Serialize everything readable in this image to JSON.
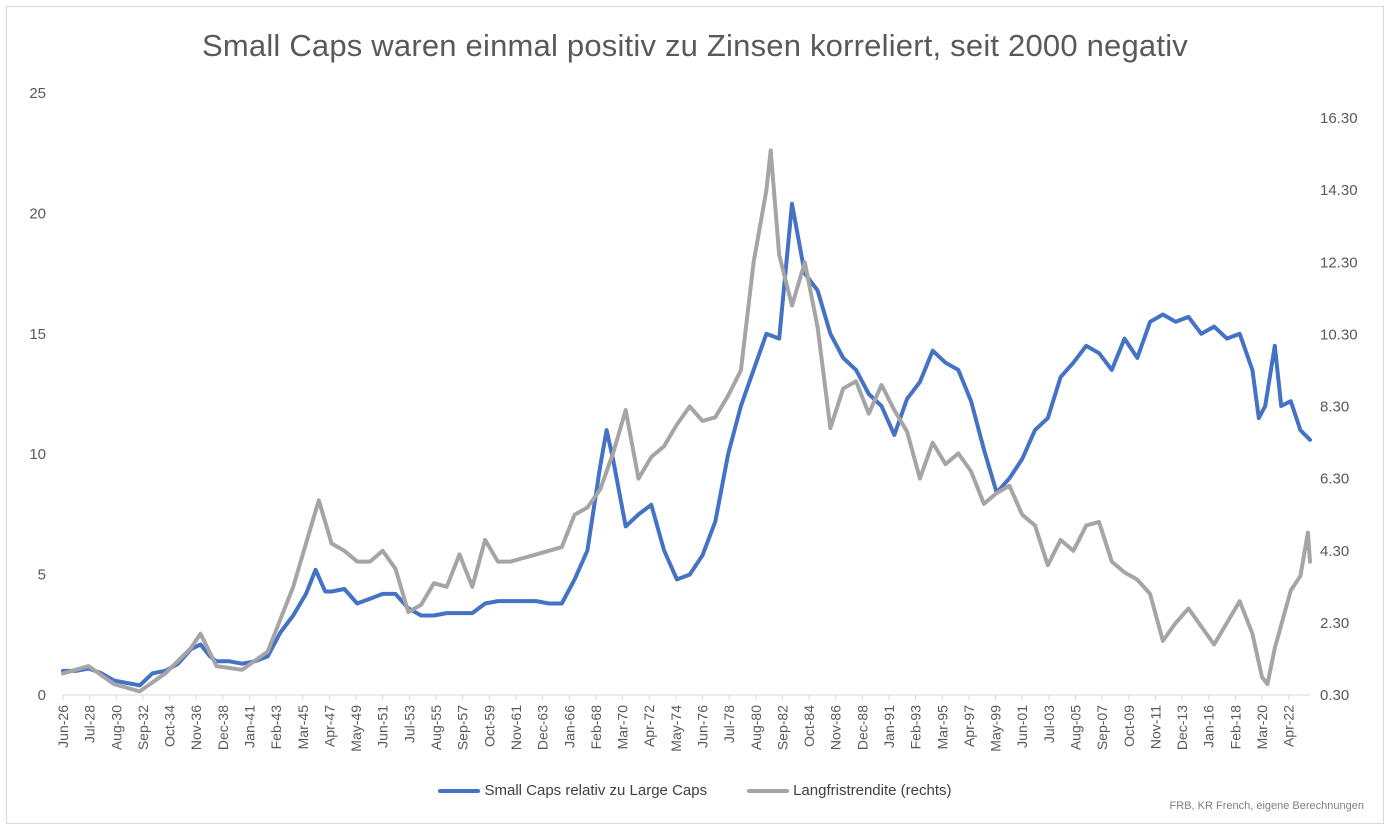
{
  "chart_data": {
    "type": "line",
    "title": "Small Caps waren einmal positiv zu Zinsen korreliert, seit 2000 negativ",
    "source_note": "FRB, KR French, eigene Berechnungen",
    "x_range": [
      "1926-06",
      "2023-12"
    ],
    "x_tick_labels": [
      "Jun-26",
      "Jul-28",
      "Aug-30",
      "Sep-32",
      "Oct-34",
      "Nov-36",
      "Dec-38",
      "Jan-41",
      "Feb-43",
      "Mar-45",
      "Apr-47",
      "May-49",
      "Jun-51",
      "Jul-53",
      "Aug-55",
      "Sep-57",
      "Oct-59",
      "Nov-61",
      "Dec-63",
      "Jan-66",
      "Feb-68",
      "Mar-70",
      "Apr-72",
      "May-74",
      "Jun-76",
      "Jul-78",
      "Aug-80",
      "Sep-82",
      "Oct-84",
      "Nov-86",
      "Dec-88",
      "Jan-91",
      "Feb-93",
      "Mar-95",
      "Apr-97",
      "May-99",
      "Jun-01",
      "Jul-03",
      "Aug-05",
      "Sep-07",
      "Oct-09",
      "Nov-11",
      "Dec-13",
      "Jan-16",
      "Feb-18",
      "Mar-20",
      "Apr-22"
    ],
    "y_left": {
      "ticks": [
        "0",
        "5",
        "10",
        "15",
        "20",
        "25"
      ],
      "range": [
        0,
        25
      ]
    },
    "y_right": {
      "ticks": [
        "0.30",
        "2.30",
        "4.30",
        "6.30",
        "8.30",
        "10.30",
        "12.30",
        "14.30",
        "16.30"
      ],
      "range": [
        0.3,
        16.3
      ]
    },
    "legend_position": "bottom",
    "grid": false,
    "series": [
      {
        "name": "Small Caps relativ zu Large Caps",
        "axis": "left",
        "color": "#4472c4",
        "points": [
          [
            "1926-06",
            1.0
          ],
          [
            "1927-06",
            1.0
          ],
          [
            "1928-06",
            1.1
          ],
          [
            "1929-06",
            0.9
          ],
          [
            "1930-06",
            0.6
          ],
          [
            "1931-06",
            0.5
          ],
          [
            "1932-06",
            0.4
          ],
          [
            "1933-06",
            0.9
          ],
          [
            "1934-06",
            1.0
          ],
          [
            "1935-06",
            1.3
          ],
          [
            "1936-06",
            1.9
          ],
          [
            "1937-03",
            2.1
          ],
          [
            "1937-12",
            1.6
          ],
          [
            "1938-06",
            1.4
          ],
          [
            "1939-06",
            1.4
          ],
          [
            "1940-06",
            1.3
          ],
          [
            "1941-06",
            1.4
          ],
          [
            "1942-06",
            1.6
          ],
          [
            "1943-06",
            2.6
          ],
          [
            "1944-06",
            3.3
          ],
          [
            "1945-06",
            4.2
          ],
          [
            "1946-03",
            5.2
          ],
          [
            "1946-12",
            4.3
          ],
          [
            "1947-06",
            4.3
          ],
          [
            "1948-06",
            4.4
          ],
          [
            "1949-06",
            3.8
          ],
          [
            "1950-06",
            4.0
          ],
          [
            "1951-06",
            4.2
          ],
          [
            "1952-06",
            4.2
          ],
          [
            "1953-06",
            3.6
          ],
          [
            "1954-06",
            3.3
          ],
          [
            "1955-06",
            3.3
          ],
          [
            "1956-06",
            3.4
          ],
          [
            "1957-06",
            3.4
          ],
          [
            "1958-06",
            3.4
          ],
          [
            "1959-06",
            3.8
          ],
          [
            "1960-06",
            3.9
          ],
          [
            "1961-06",
            3.9
          ],
          [
            "1962-06",
            3.9
          ],
          [
            "1963-06",
            3.9
          ],
          [
            "1964-06",
            3.8
          ],
          [
            "1965-06",
            3.8
          ],
          [
            "1966-06",
            4.8
          ],
          [
            "1967-06",
            6.0
          ],
          [
            "1968-06",
            9.5
          ],
          [
            "1968-12",
            11.0
          ],
          [
            "1969-06",
            9.8
          ],
          [
            "1970-06",
            7.0
          ],
          [
            "1971-06",
            7.5
          ],
          [
            "1972-06",
            7.9
          ],
          [
            "1973-06",
            6.0
          ],
          [
            "1974-06",
            4.8
          ],
          [
            "1975-06",
            5.0
          ],
          [
            "1976-06",
            5.8
          ],
          [
            "1977-06",
            7.2
          ],
          [
            "1978-06",
            10.0
          ],
          [
            "1979-06",
            12.0
          ],
          [
            "1980-06",
            13.5
          ],
          [
            "1981-06",
            15.0
          ],
          [
            "1982-06",
            14.8
          ],
          [
            "1983-06",
            20.4
          ],
          [
            "1984-06",
            17.5
          ],
          [
            "1985-06",
            16.8
          ],
          [
            "1986-06",
            15.0
          ],
          [
            "1987-06",
            14.0
          ],
          [
            "1988-06",
            13.5
          ],
          [
            "1989-06",
            12.5
          ],
          [
            "1990-06",
            12.0
          ],
          [
            "1991-06",
            10.8
          ],
          [
            "1992-06",
            12.3
          ],
          [
            "1993-06",
            13.0
          ],
          [
            "1994-06",
            14.3
          ],
          [
            "1995-06",
            13.8
          ],
          [
            "1996-06",
            13.5
          ],
          [
            "1997-06",
            12.2
          ],
          [
            "1998-06",
            10.2
          ],
          [
            "1999-06",
            8.4
          ],
          [
            "2000-06",
            9.0
          ],
          [
            "2001-06",
            9.8
          ],
          [
            "2002-06",
            11.0
          ],
          [
            "2003-06",
            11.5
          ],
          [
            "2004-06",
            13.2
          ],
          [
            "2005-06",
            13.8
          ],
          [
            "2006-06",
            14.5
          ],
          [
            "2007-06",
            14.2
          ],
          [
            "2008-06",
            13.5
          ],
          [
            "2009-06",
            14.8
          ],
          [
            "2010-06",
            14.0
          ],
          [
            "2011-06",
            15.5
          ],
          [
            "2012-06",
            15.8
          ],
          [
            "2013-06",
            15.5
          ],
          [
            "2014-06",
            15.7
          ],
          [
            "2015-06",
            15.0
          ],
          [
            "2016-06",
            15.3
          ],
          [
            "2017-06",
            14.8
          ],
          [
            "2018-06",
            15.0
          ],
          [
            "2019-06",
            13.5
          ],
          [
            "2019-12",
            11.5
          ],
          [
            "2020-06",
            12.0
          ],
          [
            "2021-03",
            14.5
          ],
          [
            "2021-09",
            12.0
          ],
          [
            "2022-06",
            12.2
          ],
          [
            "2023-03",
            11.0
          ],
          [
            "2023-12",
            10.6
          ]
        ]
      },
      {
        "name": "Langfristrendite (rechts)",
        "axis": "right",
        "color": "#a5a5a5",
        "points": [
          [
            "1926-06",
            0.9
          ],
          [
            "1928-06",
            1.1
          ],
          [
            "1930-06",
            0.6
          ],
          [
            "1932-06",
            0.4
          ],
          [
            "1934-06",
            0.9
          ],
          [
            "1936-06",
            1.6
          ],
          [
            "1937-03",
            2.0
          ],
          [
            "1938-06",
            1.1
          ],
          [
            "1940-06",
            1.0
          ],
          [
            "1942-06",
            1.5
          ],
          [
            "1944-06",
            3.3
          ],
          [
            "1945-06",
            4.5
          ],
          [
            "1946-06",
            5.7
          ],
          [
            "1947-06",
            4.5
          ],
          [
            "1948-06",
            4.3
          ],
          [
            "1949-06",
            4.0
          ],
          [
            "1950-06",
            4.0
          ],
          [
            "1951-06",
            4.3
          ],
          [
            "1952-06",
            3.8
          ],
          [
            "1953-06",
            2.6
          ],
          [
            "1954-06",
            2.8
          ],
          [
            "1955-06",
            3.4
          ],
          [
            "1956-06",
            3.3
          ],
          [
            "1957-06",
            4.2
          ],
          [
            "1958-06",
            3.3
          ],
          [
            "1959-06",
            4.6
          ],
          [
            "1960-06",
            4.0
          ],
          [
            "1961-06",
            4.0
          ],
          [
            "1962-06",
            4.1
          ],
          [
            "1963-06",
            4.2
          ],
          [
            "1964-06",
            4.3
          ],
          [
            "1965-06",
            4.4
          ],
          [
            "1966-06",
            5.3
          ],
          [
            "1967-06",
            5.5
          ],
          [
            "1968-06",
            6.0
          ],
          [
            "1969-06",
            7.0
          ],
          [
            "1970-06",
            8.2
          ],
          [
            "1971-06",
            6.3
          ],
          [
            "1972-06",
            6.9
          ],
          [
            "1973-06",
            7.2
          ],
          [
            "1974-06",
            7.8
          ],
          [
            "1975-06",
            8.3
          ],
          [
            "1976-06",
            7.9
          ],
          [
            "1977-06",
            8.0
          ],
          [
            "1978-06",
            8.6
          ],
          [
            "1979-06",
            9.3
          ],
          [
            "1980-06",
            12.3
          ],
          [
            "1981-06",
            14.3
          ],
          [
            "1981-10",
            15.4
          ],
          [
            "1982-06",
            12.5
          ],
          [
            "1983-06",
            11.1
          ],
          [
            "1984-06",
            12.3
          ],
          [
            "1985-06",
            10.5
          ],
          [
            "1986-06",
            7.7
          ],
          [
            "1987-06",
            8.8
          ],
          [
            "1988-06",
            9.0
          ],
          [
            "1989-06",
            8.1
          ],
          [
            "1990-06",
            8.9
          ],
          [
            "1991-06",
            8.2
          ],
          [
            "1992-06",
            7.6
          ],
          [
            "1993-06",
            6.3
          ],
          [
            "1994-06",
            7.3
          ],
          [
            "1995-06",
            6.7
          ],
          [
            "1996-06",
            7.0
          ],
          [
            "1997-06",
            6.5
          ],
          [
            "1998-06",
            5.6
          ],
          [
            "1999-06",
            5.9
          ],
          [
            "2000-06",
            6.1
          ],
          [
            "2001-06",
            5.3
          ],
          [
            "2002-06",
            5.0
          ],
          [
            "2003-06",
            3.9
          ],
          [
            "2004-06",
            4.6
          ],
          [
            "2005-06",
            4.3
          ],
          [
            "2006-06",
            5.0
          ],
          [
            "2007-06",
            5.1
          ],
          [
            "2008-06",
            4.0
          ],
          [
            "2009-06",
            3.7
          ],
          [
            "2010-06",
            3.5
          ],
          [
            "2011-06",
            3.1
          ],
          [
            "2012-06",
            1.8
          ],
          [
            "2013-06",
            2.3
          ],
          [
            "2014-06",
            2.7
          ],
          [
            "2015-06",
            2.2
          ],
          [
            "2016-06",
            1.7
          ],
          [
            "2017-06",
            2.3
          ],
          [
            "2018-06",
            2.9
          ],
          [
            "2019-06",
            2.0
          ],
          [
            "2020-03",
            0.8
          ],
          [
            "2020-08",
            0.6
          ],
          [
            "2021-03",
            1.6
          ],
          [
            "2022-06",
            3.2
          ],
          [
            "2023-03",
            3.6
          ],
          [
            "2023-10",
            4.8
          ],
          [
            "2023-12",
            4.0
          ]
        ]
      }
    ]
  }
}
